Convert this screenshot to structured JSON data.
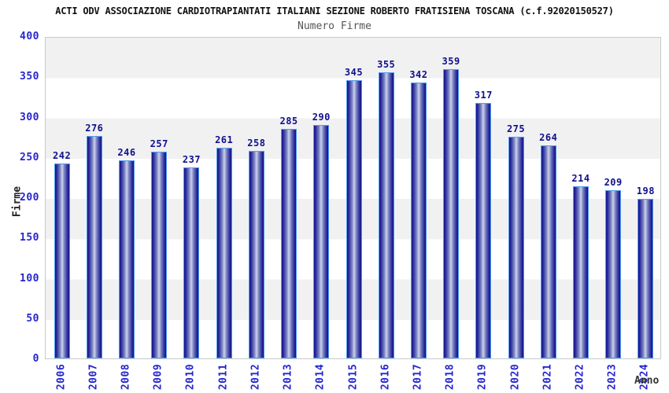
{
  "header": {
    "title": "ACTI ODV ASSOCIAZIONE CARDIOTRAPIANTATI ITALIANI SEZIONE ROBERTO FRATISIENA TOSCANA (c.f.92020150527)",
    "subtitle": "Numero Firme"
  },
  "chart_data": {
    "type": "bar",
    "title": "Numero Firme",
    "categories": [
      "2006",
      "2007",
      "2008",
      "2009",
      "2010",
      "2011",
      "2012",
      "2013",
      "2014",
      "2015",
      "2016",
      "2017",
      "2018",
      "2019",
      "2020",
      "2021",
      "2022",
      "2023",
      "2024"
    ],
    "values": [
      242,
      276,
      246,
      257,
      237,
      261,
      258,
      285,
      290,
      345,
      355,
      342,
      359,
      317,
      275,
      264,
      214,
      209,
      198
    ],
    "xlabel": "Anno",
    "ylabel": "Firme",
    "ylim": [
      0,
      400
    ],
    "yticks": [
      0,
      50,
      100,
      150,
      200,
      250,
      300,
      350,
      400
    ],
    "grid": "horizontal alternating bands every 50 units",
    "legend": "none",
    "value_labels": "above each bar",
    "x_tick_rotation_deg": 90
  },
  "colors": {
    "bar_edge": "#12128c",
    "bar_center": "#cdd2ec",
    "bar_border": "#4f9ef0",
    "tick_label": "#2525cd",
    "value_label": "#10108c",
    "band_gray": "#f1f1f2",
    "band_white": "#ffffff",
    "plot_border": "#c9c9c9",
    "title_color": "#111111",
    "subtitle_color": "#55555a",
    "axis_title_color": "#333333"
  }
}
